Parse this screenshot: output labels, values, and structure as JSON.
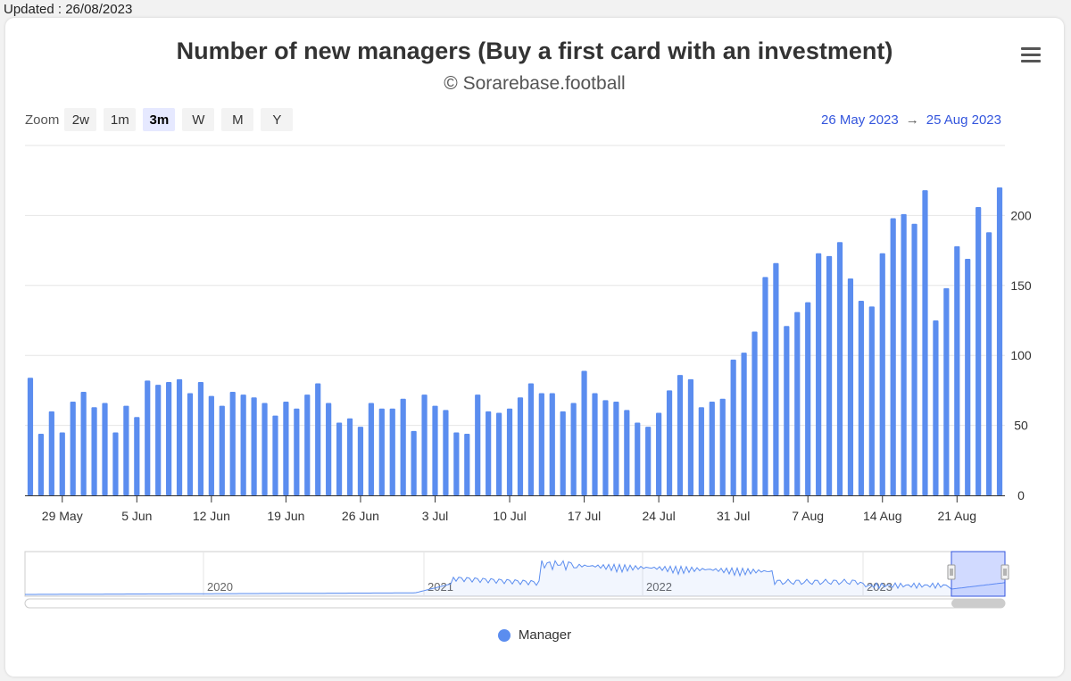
{
  "updated": "Updated : 26/08/2023",
  "title": "Number of new managers (Buy a first card with an investment)",
  "subtitle": "© Sorarebase.football",
  "zoom": {
    "label": "Zoom",
    "buttons": [
      "2w",
      "1m",
      "3m",
      "W",
      "M",
      "Y"
    ],
    "active": "3m"
  },
  "range": {
    "from": "26 May 2023",
    "arrow": "→",
    "to": "25 Aug 2023"
  },
  "legend": {
    "label": "Manager",
    "color": "#5b8def"
  },
  "navigator": {
    "year_labels": [
      "2020",
      "2021",
      "2022",
      "2023"
    ]
  },
  "chart_data": {
    "type": "bar",
    "series": [
      {
        "name": "Manager",
        "color": "#5b8def",
        "start_date": "2023-05-26",
        "values": [
          84,
          44,
          60,
          45,
          67,
          74,
          63,
          66,
          45,
          64,
          56,
          82,
          79,
          81,
          83,
          73,
          81,
          71,
          64,
          74,
          72,
          70,
          66,
          57,
          67,
          62,
          72,
          80,
          66,
          52,
          55,
          49,
          66,
          62,
          62,
          69,
          46,
          72,
          64,
          61,
          45,
          44,
          72,
          60,
          59,
          62,
          70,
          80,
          73,
          73,
          60,
          66,
          89,
          73,
          68,
          67,
          61,
          52,
          49,
          59,
          75,
          86,
          83,
          63,
          67,
          69,
          97,
          102,
          117,
          156,
          166,
          121,
          131,
          138,
          173,
          171,
          181,
          155,
          139,
          135,
          173,
          198,
          201,
          194,
          218,
          125,
          148,
          178,
          169,
          206,
          188,
          220
        ]
      }
    ],
    "x_tick_labels": [
      "29 May",
      "5 Jun",
      "12 Jun",
      "19 Jun",
      "26 Jun",
      "3 Jul",
      "10 Jul",
      "17 Jul",
      "24 Jul",
      "31 Jul",
      "7 Aug",
      "14 Aug",
      "21 Aug"
    ],
    "y_tick_labels": [
      "0",
      "50",
      "100",
      "150",
      "200"
    ],
    "ylim": [
      0,
      250
    ],
    "grid": true,
    "legend_position": "bottom"
  }
}
